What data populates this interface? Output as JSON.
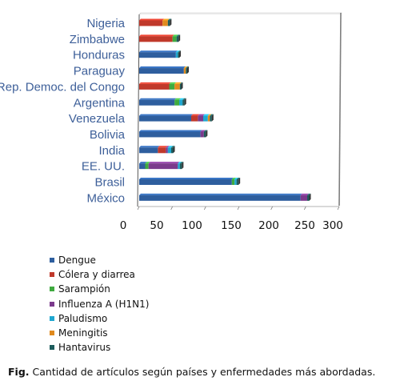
{
  "chart_data": {
    "type": "bar",
    "orientation": "horizontal",
    "stacked": true,
    "categories": [
      "Nigeria",
      "Zimbabwe",
      "Honduras",
      "Paraguay",
      "Rep. Democ. del Congo",
      "Argentina",
      "Venezuela",
      "Bolivia",
      "India",
      "EE. UU.",
      "Brasil",
      "México"
    ],
    "series": [
      {
        "name": "Dengue",
        "color": "#2e5e9e",
        "values": [
          0,
          0,
          55,
          67,
          0,
          53,
          78,
          92,
          28,
          9,
          139,
          242
        ]
      },
      {
        "name": "Cólera y diarrea",
        "color": "#c0392b",
        "values": [
          35,
          50,
          0,
          0,
          45,
          0,
          10,
          0,
          12,
          0,
          0,
          0
        ]
      },
      {
        "name": "Sarampión",
        "color": "#3faa3f",
        "values": [
          0,
          6,
          0,
          0,
          8,
          7,
          0,
          0,
          0,
          5,
          4,
          0
        ]
      },
      {
        "name": "Influenza A (H1N1)",
        "color": "#7b3a8c",
        "values": [
          0,
          0,
          0,
          0,
          0,
          0,
          8,
          5,
          3,
          44,
          0,
          10
        ]
      },
      {
        "name": "Paludismo",
        "color": "#1fa7d0",
        "values": [
          0,
          0,
          3,
          0,
          0,
          5,
          7,
          0,
          5,
          3,
          3,
          0
        ]
      },
      {
        "name": "Meningitis",
        "color": "#e08a1e",
        "values": [
          8,
          0,
          0,
          3,
          8,
          0,
          3,
          0,
          0,
          0,
          0,
          0
        ]
      },
      {
        "name": "Hantavirus",
        "color": "#1d5c5c",
        "values": [
          3,
          3,
          2,
          2,
          2,
          3,
          3,
          3,
          3,
          3,
          3,
          3
        ]
      }
    ],
    "xticks": [
      "0",
      "50",
      "100",
      "150",
      "200",
      "250",
      "300"
    ],
    "xlim": [
      0,
      300
    ],
    "legend_position": "bottom-left",
    "grid": false
  },
  "caption": {
    "prefix": "Fig.",
    "text": "Cantidad de artículos según países y enfermedades más abordadas."
  }
}
